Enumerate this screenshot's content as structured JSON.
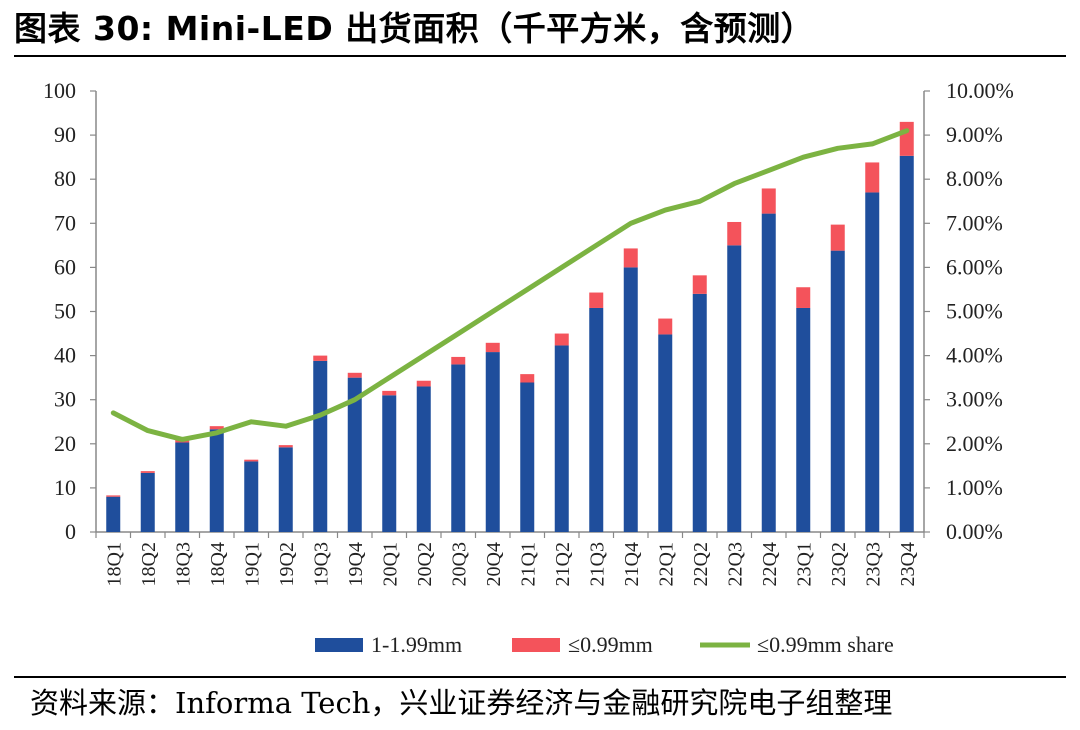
{
  "header": {
    "title": "图表 30:  Mini-LED 出货面积（千平方米，含预测）"
  },
  "footer": {
    "source": "资料来源：Informa Tech，兴业证券经济与金融研究院电子组整理"
  },
  "chart_data": {
    "type": "bar",
    "stacked": true,
    "title": "",
    "xlabel": "",
    "ylabel": "",
    "ylim": [
      0,
      100
    ],
    "y2lim": [
      0,
      0.1
    ],
    "yticks": [
      "0",
      "10",
      "20",
      "30",
      "40",
      "50",
      "60",
      "70",
      "80",
      "90",
      "100"
    ],
    "y2ticks": [
      "0.00%",
      "1.00%",
      "2.00%",
      "3.00%",
      "4.00%",
      "5.00%",
      "6.00%",
      "7.00%",
      "8.00%",
      "9.00%",
      "10.00%"
    ],
    "categories": [
      "18Q1",
      "18Q2",
      "18Q3",
      "18Q4",
      "19Q1",
      "19Q2",
      "19Q3",
      "19Q4",
      "20Q1",
      "20Q2",
      "20Q3",
      "20Q4",
      "21Q1",
      "21Q2",
      "21Q3",
      "21Q4",
      "22Q1",
      "22Q2",
      "22Q3",
      "22Q4",
      "23Q1",
      "23Q2",
      "23Q3",
      "23Q4"
    ],
    "series": [
      {
        "name": "1-1.99mm",
        "color": "#1f4e9c",
        "axis": "left",
        "values": [
          8,
          13.4,
          20.3,
          23.3,
          16,
          19.2,
          38.8,
          35,
          31,
          33,
          38,
          40.8,
          33.9,
          42.3,
          50.8,
          60,
          44.8,
          54,
          65,
          72.2,
          50.8,
          63.8,
          77,
          85.3
        ]
      },
      {
        "name": "≤0.99mm",
        "color": "#f4535b",
        "axis": "left",
        "values": [
          0.3,
          0.4,
          0.6,
          0.7,
          0.4,
          0.5,
          1.2,
          1.1,
          1.0,
          1.3,
          1.7,
          2.1,
          1.9,
          2.7,
          3.5,
          4.3,
          3.6,
          4.2,
          5.3,
          5.7,
          4.7,
          5.9,
          6.8,
          7.7
        ]
      },
      {
        "name": "≤0.99mm share",
        "color": "#7cb342",
        "axis": "right",
        "type": "line",
        "values": [
          0.027,
          0.023,
          0.021,
          0.0225,
          0.025,
          0.024,
          0.0265,
          0.03,
          0.035,
          0.04,
          0.045,
          0.05,
          0.055,
          0.06,
          0.065,
          0.07,
          0.073,
          0.075,
          0.079,
          0.082,
          0.085,
          0.087,
          0.088,
          0.091
        ]
      }
    ],
    "legend_position": "bottom",
    "grid": false
  }
}
